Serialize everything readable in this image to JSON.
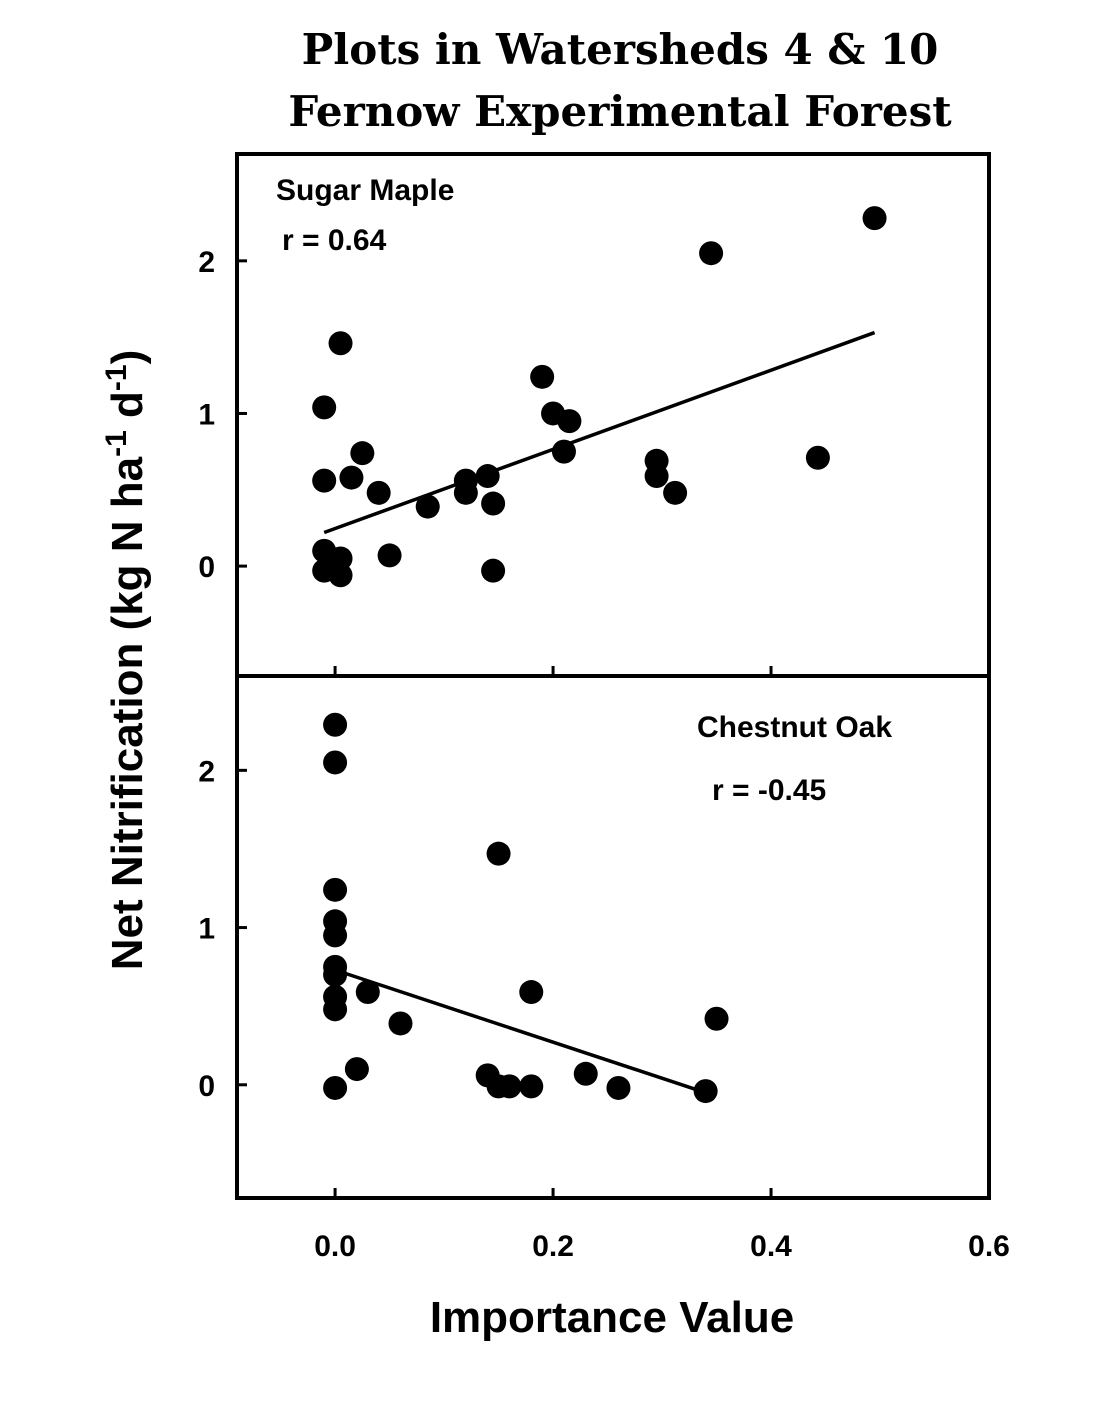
{
  "chart_data": {
    "type": "scatter",
    "title_lines": [
      "Plots in Watersheds 4 & 10",
      "Fernow Experimental Forest"
    ],
    "xlabel": "Importance Value",
    "ylabel_parts": [
      "Net Nitrification (kg N ha",
      "-1",
      " d",
      "-1",
      ")"
    ],
    "xlim": [
      -0.09,
      0.6
    ],
    "x_ticks": [
      0.0,
      0.2,
      0.4,
      0.6
    ],
    "x_tick_labels": [
      "0.0",
      "0.2",
      "0.4",
      "0.6"
    ],
    "panels": [
      {
        "name": "Sugar Maple",
        "r_label": "r = 0.64",
        "ylim": [
          -0.72,
          2.7
        ],
        "y_ticks": [
          0,
          1,
          2
        ],
        "y_tick_labels": [
          "0",
          "1",
          "2"
        ],
        "points": [
          [
            -0.01,
            1.04
          ],
          [
            -0.01,
            0.56
          ],
          [
            -0.01,
            0.1
          ],
          [
            -0.01,
            -0.03
          ],
          [
            0.005,
            1.46
          ],
          [
            0.005,
            0.05
          ],
          [
            0.005,
            -0.06
          ],
          [
            0.015,
            0.58
          ],
          [
            0.025,
            0.74
          ],
          [
            0.04,
            0.48
          ],
          [
            0.05,
            0.07
          ],
          [
            0.085,
            0.39
          ],
          [
            0.12,
            0.56
          ],
          [
            0.12,
            0.48
          ],
          [
            0.14,
            0.59
          ],
          [
            0.145,
            0.41
          ],
          [
            0.145,
            -0.03
          ],
          [
            0.19,
            1.24
          ],
          [
            0.2,
            1.0
          ],
          [
            0.21,
            0.75
          ],
          [
            0.215,
            0.95
          ],
          [
            0.295,
            0.69
          ],
          [
            0.295,
            0.59
          ],
          [
            0.312,
            0.48
          ],
          [
            0.345,
            2.05
          ],
          [
            0.443,
            0.71
          ],
          [
            0.495,
            2.28
          ]
        ],
        "fit": [
          [
            -0.01,
            0.22
          ],
          [
            0.495,
            1.53
          ]
        ]
      },
      {
        "name": "Chestnut Oak",
        "r_label": "r = -0.45",
        "ylim": [
          -0.72,
          2.6
        ],
        "y_ticks": [
          0,
          1,
          2
        ],
        "y_tick_labels": [
          "0",
          "1",
          "2"
        ],
        "points": [
          [
            0.0,
            2.29
          ],
          [
            0.0,
            2.05
          ],
          [
            0.0,
            1.24
          ],
          [
            0.0,
            1.04
          ],
          [
            0.0,
            0.95
          ],
          [
            0.0,
            0.75
          ],
          [
            0.0,
            0.7
          ],
          [
            0.0,
            0.56
          ],
          [
            0.0,
            0.48
          ],
          [
            0.0,
            -0.02
          ],
          [
            0.02,
            0.1
          ],
          [
            0.03,
            0.59
          ],
          [
            0.06,
            0.39
          ],
          [
            0.14,
            0.06
          ],
          [
            0.15,
            1.47
          ],
          [
            0.15,
            -0.01
          ],
          [
            0.16,
            -0.01
          ],
          [
            0.18,
            0.59
          ],
          [
            0.18,
            -0.01
          ],
          [
            0.23,
            0.07
          ],
          [
            0.26,
            -0.02
          ],
          [
            0.34,
            -0.04
          ],
          [
            0.35,
            0.42
          ]
        ],
        "fit": [
          [
            0.0,
            0.73
          ],
          [
            0.34,
            -0.05
          ]
        ]
      }
    ]
  }
}
